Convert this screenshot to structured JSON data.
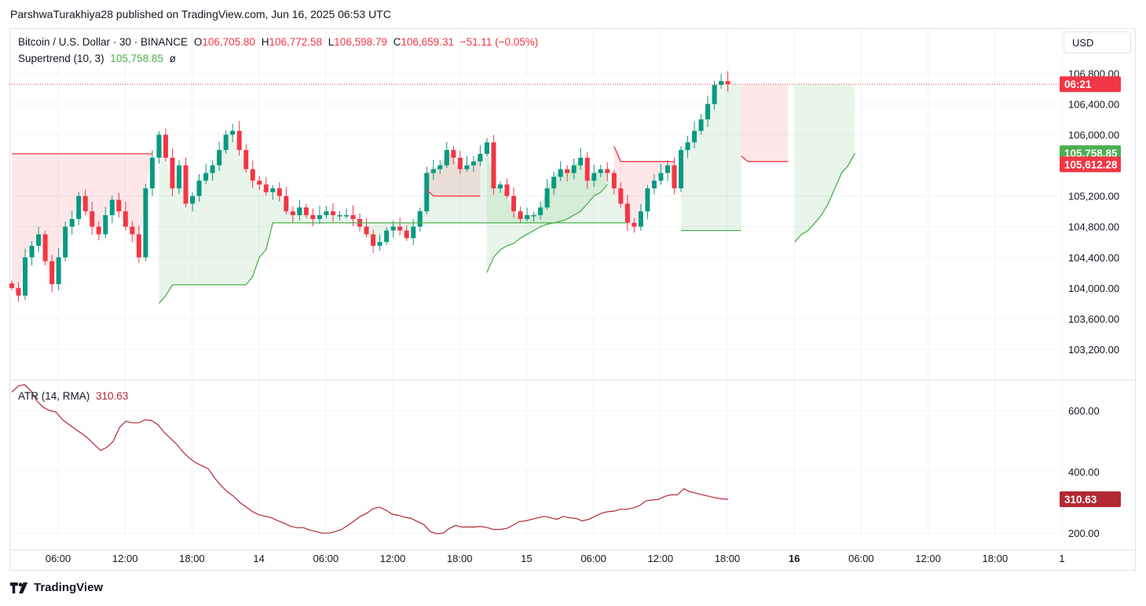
{
  "publisher": "ParshwaTurakhiya28 published on TradingView.com, Jun 16, 2025 06:53 UTC",
  "symbol": {
    "title": "Bitcoin / U.S. Dollar · 30 · BINANCE",
    "open_label": "O",
    "open": "106,705.80",
    "high_label": "H",
    "high": "106,772.58",
    "low_label": "L",
    "low": "106,598.79",
    "close_label": "C",
    "close": "106,659.31",
    "change": "−51.11 (−0.05%)"
  },
  "supertrend": {
    "label": "Supertrend (10, 3)",
    "value": "105,758.85",
    "eye_icon": "ø"
  },
  "atr": {
    "label": "ATR (14, RMA)",
    "value": "310.63"
  },
  "currency_button": "USD",
  "brand": "TradingView",
  "colors": {
    "up": "#089981",
    "down": "#f23645",
    "supertrend_up": "#4caf50",
    "supertrend_down": "#f23645",
    "atr": "#b22833"
  },
  "chart_data": [
    {
      "type": "candlestick",
      "title": "Bitcoin / U.S. Dollar · 30 · BINANCE",
      "y_ticks": [
        "106,800.00",
        "106,400.00",
        "106,000.00",
        "105,200.00",
        "104,800.00",
        "104,400.00",
        "104,000.00",
        "103,600.00",
        "103,200.00"
      ],
      "y_tick_values": [
        106800,
        106400,
        106000,
        105200,
        104800,
        104400,
        104000,
        103600,
        103200
      ],
      "ylim": [
        102800,
        107020
      ],
      "x_ticks": [
        "06:00",
        "12:00",
        "18:00",
        "14",
        "06:00",
        "12:00",
        "18:00",
        "15",
        "06:00",
        "12:00",
        "18:00",
        "16",
        "06:00",
        "12:00",
        "18:00",
        "1"
      ],
      "x_bold": [
        "16"
      ],
      "price_labels": [
        {
          "text": "06:21",
          "value": 106659.31,
          "kind": "countdown"
        },
        {
          "text": "105,758.85",
          "value": 105758.85,
          "kind": "supertrend"
        },
        {
          "text": "105,612.28",
          "value": 105612.28,
          "kind": "price"
        }
      ],
      "close_path": [
        104000,
        103900,
        104400,
        104550,
        104700,
        104350,
        104050,
        104400,
        104800,
        104900,
        105200,
        105000,
        104800,
        104700,
        104950,
        105150,
        105000,
        104800,
        104700,
        104400,
        105300,
        105700,
        106000,
        105700,
        105300,
        105600,
        105100,
        105200,
        105400,
        105500,
        105600,
        105800,
        106000,
        106050,
        105800,
        105550,
        105400,
        105350,
        105250,
        105300,
        105200,
        105000,
        104950,
        105050,
        104950,
        104900,
        104950,
        105000,
        104950,
        104950,
        104950,
        104900,
        104800,
        104700,
        104550,
        104600,
        104750,
        104800,
        104750,
        104650,
        104800,
        105000,
        105500,
        105550,
        105600,
        105800,
        105700,
        105550,
        105600,
        105650,
        105750,
        105900,
        105300,
        105350,
        105200,
        105000,
        104900,
        104950,
        104950,
        105050,
        105300,
        105450,
        105550,
        105500,
        105600,
        105700,
        105400,
        105500,
        105550,
        105500,
        105300,
        105100,
        104850,
        104800,
        105000,
        105300,
        105400,
        105500,
        105600,
        105300,
        105800,
        105900,
        106050,
        106200,
        106400,
        106650,
        106700,
        106660
      ],
      "supertrend": {
        "segments": [
          {
            "trend": "down",
            "start": 0,
            "values": [
              105750,
              105750,
              105750,
              105750,
              105750,
              105750,
              105750,
              105750,
              105750,
              105750,
              105750,
              105750,
              105750,
              105750,
              105750,
              105750,
              105750,
              105750,
              105750,
              105750,
              105750,
              105750
            ]
          },
          {
            "trend": "up",
            "start": 22,
            "values": [
              103800,
              103900,
              104040,
              104040,
              104040,
              104040,
              104040,
              104040,
              104040,
              104040,
              104040,
              104040,
              104040,
              104040,
              104150,
              104400,
              104500,
              104850,
              104850,
              104850,
              104850,
              104850,
              104850,
              104850,
              104850,
              104850,
              104850,
              104850,
              104850,
              104850,
              104850,
              104850,
              104850,
              104850,
              104850,
              104850,
              104850,
              104850,
              104850,
              104850,
              104850,
              104850,
              104850,
              104850,
              104850,
              104850,
              104850,
              104850,
              104850,
              104850,
              104850,
              104850,
              104850,
              104850,
              104850,
              104850,
              104850,
              104850,
              104850,
              104850,
              104850,
              104850,
              104850,
              104850,
              104850,
              104850,
              104850,
              104850,
              104850,
              104850,
              104850
            ]
          },
          {
            "trend": "down",
            "start": 62,
            "values": [
              105280,
              105200,
              105200,
              105200,
              105200,
              105200,
              105200,
              105200,
              105200
            ]
          },
          {
            "trend": "up",
            "start": 71,
            "values": [
              104200,
              104400,
              104500,
              104550,
              104580,
              104650,
              104700,
              104750,
              104800,
              104830,
              104850,
              104870,
              104900,
              104950,
              105000,
              105100,
              105200,
              105250,
              105350
            ]
          },
          {
            "trend": "down",
            "start": 90,
            "values": [
              105850,
              105650,
              105650,
              105650,
              105650,
              105650,
              105650,
              105650,
              105650,
              105650
            ]
          },
          {
            "trend": "up",
            "start": 100,
            "values": [
              104750,
              104750,
              104750,
              104750,
              104750,
              104750,
              104750,
              104750,
              104750,
              104750
            ]
          },
          {
            "trend": "down",
            "start": 109,
            "values": [
              105720,
              105650,
              105650,
              105650,
              105650,
              105650,
              105650,
              105650
            ]
          },
          {
            "trend": "up",
            "start": 117,
            "values": [
              104600,
              104700,
              104750,
              104850,
              104950,
              105100,
              105300,
              105500,
              105600,
              105758.85
            ]
          }
        ]
      }
    },
    {
      "type": "line",
      "title": "ATR (14, RMA)",
      "y_ticks": [
        "600.00",
        "400.00",
        "200.00"
      ],
      "y_tick_values": [
        600,
        400,
        200
      ],
      "ylim": [
        180,
        700
      ],
      "last_value_label": "310.63",
      "values": [
        660,
        680,
        685,
        665,
        630,
        610,
        600,
        595,
        570,
        555,
        540,
        525,
        510,
        490,
        470,
        480,
        500,
        545,
        565,
        560,
        560,
        570,
        568,
        555,
        530,
        510,
        490,
        465,
        445,
        430,
        420,
        410,
        380,
        355,
        335,
        320,
        300,
        285,
        270,
        260,
        255,
        250,
        240,
        232,
        222,
        218,
        218,
        210,
        205,
        200,
        200,
        205,
        212,
        225,
        240,
        255,
        265,
        280,
        285,
        275,
        262,
        258,
        252,
        248,
        238,
        228,
        205,
        198,
        200,
        215,
        225,
        220,
        220,
        220,
        222,
        218,
        212,
        212,
        215,
        225,
        238,
        240,
        245,
        250,
        255,
        250,
        245,
        255,
        250,
        248,
        240,
        245,
        255,
        265,
        270,
        272,
        278,
        278,
        282,
        290,
        305,
        308,
        310,
        320,
        325,
        325,
        345,
        335,
        330,
        325,
        320,
        315,
        312,
        310.63
      ]
    }
  ]
}
